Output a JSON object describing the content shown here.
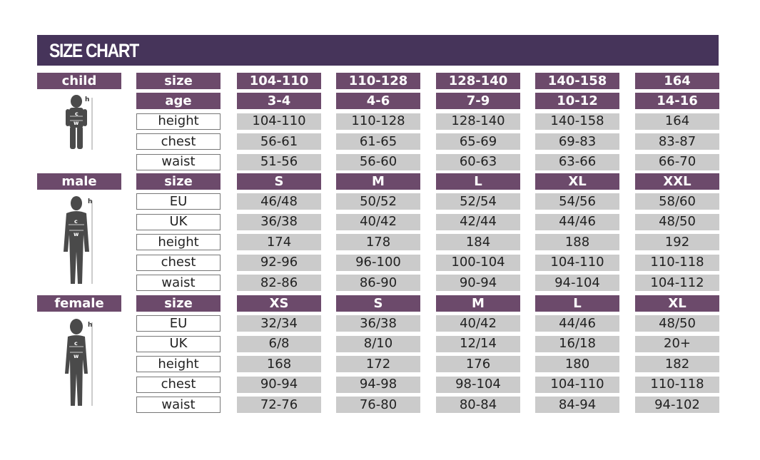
{
  "title": "SIZE CHART",
  "colors": {
    "header": "#46345a",
    "label": "#6c4a6b",
    "cell": "#cbcbcb"
  },
  "sections": [
    {
      "label": "child",
      "figure": "child-silhouette-icon",
      "marks": [
        "h",
        "c",
        "w"
      ],
      "rows": [
        {
          "field": "size",
          "values": [
            "104-110",
            "110-128",
            "128-140",
            "140-158",
            "164"
          ],
          "style": "p"
        },
        {
          "field": "age",
          "values": [
            "3-4",
            "4-6",
            "7-9",
            "10-12",
            "14-16"
          ],
          "style": "p"
        },
        {
          "field": "height",
          "values": [
            "104-110",
            "110-128",
            "128-140",
            "140-158",
            "164"
          ]
        },
        {
          "field": "chest",
          "values": [
            "56-61",
            "61-65",
            "65-69",
            "69-83",
            "83-87"
          ]
        },
        {
          "field": "waist",
          "values": [
            "51-56",
            "56-60",
            "60-63",
            "63-66",
            "66-70"
          ]
        }
      ]
    },
    {
      "label": "male",
      "figure": "male-silhouette-icon",
      "marks": [
        "h",
        "c",
        "w"
      ],
      "rows": [
        {
          "field": "size",
          "values": [
            "S",
            "M",
            "L",
            "XL",
            "XXL"
          ],
          "style": "p"
        },
        {
          "field": "EU",
          "values": [
            "46/48",
            "50/52",
            "52/54",
            "54/56",
            "58/60"
          ]
        },
        {
          "field": "UK",
          "values": [
            "36/38",
            "40/42",
            "42/44",
            "44/46",
            "48/50"
          ]
        },
        {
          "field": "height",
          "values": [
            "174",
            "178",
            "184",
            "188",
            "192"
          ]
        },
        {
          "field": "chest",
          "values": [
            "92-96",
            "96-100",
            "100-104",
            "104-110",
            "110-118"
          ]
        },
        {
          "field": "waist",
          "values": [
            "82-86",
            "86-90",
            "90-94",
            "94-104",
            "104-112"
          ]
        }
      ]
    },
    {
      "label": "female",
      "figure": "female-silhouette-icon",
      "marks": [
        "h",
        "c",
        "w"
      ],
      "rows": [
        {
          "field": "size",
          "values": [
            "XS",
            "S",
            "M",
            "L",
            "XL"
          ],
          "style": "p"
        },
        {
          "field": "EU",
          "values": [
            "32/34",
            "36/38",
            "40/42",
            "44/46",
            "48/50"
          ]
        },
        {
          "field": "UK",
          "values": [
            "6/8",
            "8/10",
            "12/14",
            "16/18",
            "20+"
          ]
        },
        {
          "field": "height",
          "values": [
            "168",
            "172",
            "176",
            "180",
            "182"
          ]
        },
        {
          "field": "chest",
          "values": [
            "90-94",
            "94-98",
            "98-104",
            "104-110",
            "110-118"
          ]
        },
        {
          "field": "waist",
          "values": [
            "72-76",
            "76-80",
            "80-84",
            "84-94",
            "94-102"
          ]
        }
      ]
    }
  ]
}
